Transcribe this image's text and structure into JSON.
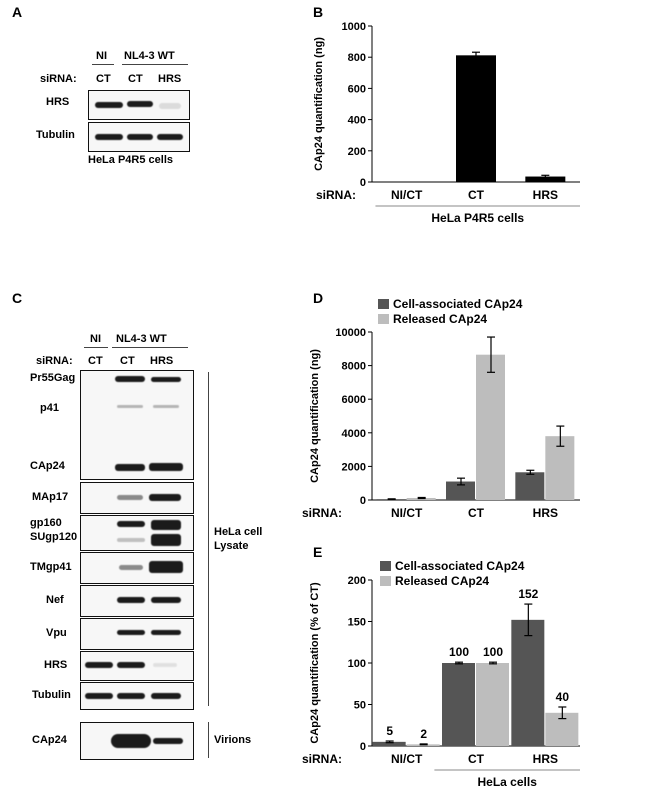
{
  "panels": {
    "A": {
      "letter": "A",
      "group_ni": "NI",
      "group_nl": "NL4-3 WT",
      "sirna_label": "siRNA:",
      "lanes": [
        "CT",
        "CT",
        "HRS"
      ],
      "rows": [
        "HRS",
        "Tubulin"
      ],
      "caption": "HeLa P4R5 cells"
    },
    "B": {
      "letter": "B"
    },
    "C": {
      "letter": "C",
      "group_ni": "NI",
      "group_nl": "NL4-3 WT",
      "sirna_label": "siRNA:",
      "lanes": [
        "CT",
        "CT",
        "HRS"
      ],
      "rows": [
        "Pr55Gag",
        "p41",
        "CAp24",
        "MAp17",
        "gp160",
        "SUgp120",
        "TMgp41",
        "Nef",
        "Vpu",
        "HRS",
        "Tubulin"
      ],
      "lysate_label_1": "HeLa cell",
      "lysate_label_2": "Lysate",
      "virion_row": "CAp24",
      "virion_label": "Virions"
    },
    "D": {
      "letter": "D"
    },
    "E": {
      "letter": "E"
    }
  },
  "chart_data": [
    {
      "panel": "B",
      "type": "bar",
      "categories": [
        "NI/CT",
        "CT",
        "HRS"
      ],
      "values": [
        2,
        812,
        35
      ],
      "errors": [
        0,
        20,
        8
      ],
      "ylabel": "CAp24 quantification (ng)",
      "xprefix": "siRNA:",
      "xgroup": "HeLa P4R5 cells",
      "ylim": [
        0,
        1000
      ],
      "yticks": [
        0,
        200,
        400,
        600,
        800,
        1000
      ],
      "color": "#000000"
    },
    {
      "panel": "D",
      "type": "bar",
      "categories": [
        "NI/CT",
        "CT",
        "HRS"
      ],
      "series": [
        {
          "name": "Cell-associated CAp24",
          "values": [
            50,
            1100,
            1650
          ],
          "errors": [
            20,
            200,
            120
          ],
          "color": "#555555"
        },
        {
          "name": "Released CAp24",
          "values": [
            120,
            8650,
            3800
          ],
          "errors": [
            30,
            1050,
            600
          ],
          "color": "#bdbdbd"
        }
      ],
      "ylabel": "CAp24 quantification (ng)",
      "xprefix": "siRNA:",
      "ylim": [
        0,
        10000
      ],
      "yticks": [
        0,
        2000,
        4000,
        6000,
        8000,
        10000
      ],
      "legend": "top-left"
    },
    {
      "panel": "E",
      "type": "bar",
      "categories": [
        "NI/CT",
        "CT",
        "HRS"
      ],
      "series": [
        {
          "name": "Cell-associated CAp24",
          "values": [
            5,
            100,
            152
          ],
          "labels": [
            "5",
            "100",
            "152"
          ],
          "errors": [
            1,
            1,
            19
          ],
          "color": "#555555"
        },
        {
          "name": "Released CAp24",
          "values": [
            2,
            100,
            40
          ],
          "labels": [
            "2",
            "100",
            "40"
          ],
          "errors": [
            0.5,
            1,
            7
          ],
          "color": "#bdbdbd"
        }
      ],
      "ylabel": "CAp24 quantification (% of CT)",
      "xprefix": "siRNA:",
      "xgroup": "HeLa cells",
      "ylim": [
        0,
        200
      ],
      "yticks": [
        0,
        50,
        100,
        150,
        200
      ],
      "legend": "top-left"
    }
  ]
}
